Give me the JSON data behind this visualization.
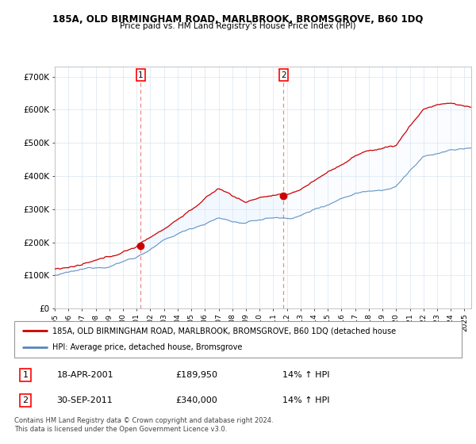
{
  "title": "185A, OLD BIRMINGHAM ROAD, MARLBROOK, BROMSGROVE, B60 1DQ",
  "subtitle": "Price paid vs. HM Land Registry's House Price Index (HPI)",
  "yticks": [
    0,
    100000,
    200000,
    300000,
    400000,
    500000,
    600000,
    700000
  ],
  "ytick_labels": [
    "£0",
    "£100K",
    "£200K",
    "£300K",
    "£400K",
    "£500K",
    "£600K",
    "£700K"
  ],
  "background_color": "#ffffff",
  "grid_color": "#d8e4f0",
  "red_color": "#cc0000",
  "blue_color": "#5588bb",
  "fill_color": "#ddeeff",
  "dashed_color": "#ee8888",
  "purchase1_x": 2001.29,
  "purchase1_y": 189950,
  "purchase2_x": 2011.75,
  "purchase2_y": 340000,
  "legend_line1": "185A, OLD BIRMINGHAM ROAD, MARLBROOK, BROMSGROVE, B60 1DQ (detached house",
  "legend_line2": "HPI: Average price, detached house, Bromsgrove",
  "annotation1_num": "1",
  "annotation1_date": "18-APR-2001",
  "annotation1_price": "£189,950",
  "annotation1_hpi": "14% ↑ HPI",
  "annotation2_num": "2",
  "annotation2_date": "30-SEP-2011",
  "annotation2_price": "£340,000",
  "annotation2_hpi": "14% ↑ HPI",
  "footer": "Contains HM Land Registry data © Crown copyright and database right 2024.\nThis data is licensed under the Open Government Licence v3.0.",
  "xmin": 1995,
  "xmax": 2025.5,
  "ymin": 0,
  "ymax": 730000
}
